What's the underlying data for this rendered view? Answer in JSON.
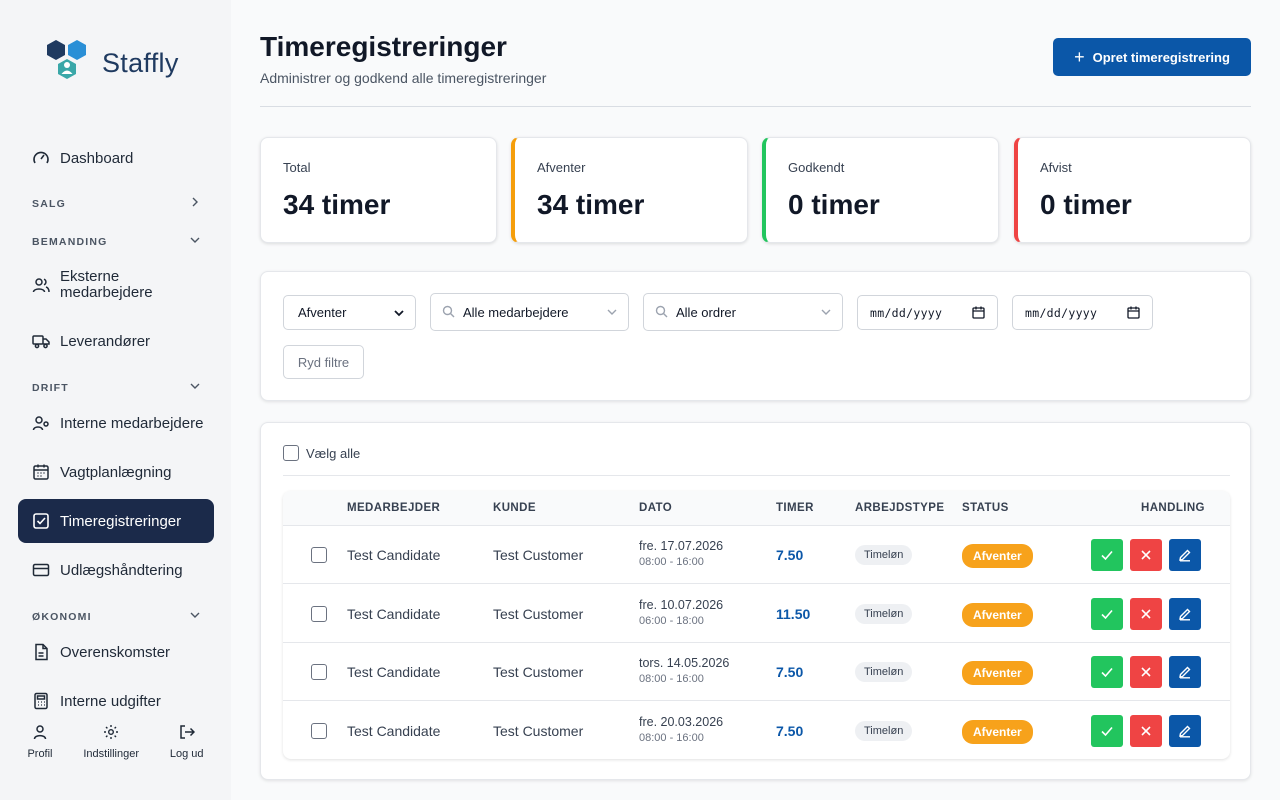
{
  "brand": {
    "name": "Staffly"
  },
  "sidebar": {
    "dashboard": "Dashboard",
    "sections": {
      "salg": "SALG",
      "bemanding": "BEMANDING",
      "drift": "DRIFT",
      "okonomi": "ØKONOMI"
    },
    "items": {
      "eksterne_line1": "Eksterne",
      "eksterne_line2": "medarbejdere",
      "leverandorer": "Leverandører",
      "interne": "Interne medarbejdere",
      "vagtplan": "Vagtplanlægning",
      "timereg": "Timeregistreringer",
      "udlaeg": "Udlægshåndtering",
      "overens": "Overenskomster",
      "udgifter": "Interne udgifter"
    },
    "bottom": {
      "profil": "Profil",
      "indstillinger": "Indstillinger",
      "logud": "Log ud"
    }
  },
  "header": {
    "title": "Timeregistreringer",
    "subtitle": "Administrer og godkend alle timeregistreringer",
    "create_label": "Opret timeregistrering"
  },
  "stats": {
    "total": {
      "label": "Total",
      "value": "34 timer"
    },
    "afventer": {
      "label": "Afventer",
      "value": "34 timer"
    },
    "godkendt": {
      "label": "Godkendt",
      "value": "0 timer"
    },
    "afvist": {
      "label": "Afvist",
      "value": "0 timer"
    }
  },
  "filters": {
    "status": "Afventer",
    "employees": "Alle medarbejdere",
    "orders": "Alle ordrer",
    "date_from": "mm/dd/yyyy",
    "date_to": "mm/dd/yyyy",
    "clear": "Ryd filtre"
  },
  "table": {
    "select_all": "Vælg alle",
    "headers": {
      "employee": "MEDARBEJDER",
      "customer": "KUNDE",
      "date": "DATO",
      "hours": "TIMER",
      "worktype": "ARBEJDSTYPE",
      "status": "STATUS",
      "action": "HANDLING"
    },
    "rows": [
      {
        "employee": "Test Candidate",
        "customer": "Test Customer",
        "date": "fre. 17.07.2026",
        "time": "08:00 - 16:00",
        "hours": "7.50",
        "worktype": "Timeløn",
        "status": "Afventer"
      },
      {
        "employee": "Test Candidate",
        "customer": "Test Customer",
        "date": "fre. 10.07.2026",
        "time": "06:00 - 18:00",
        "hours": "11.50",
        "worktype": "Timeløn",
        "status": "Afventer"
      },
      {
        "employee": "Test Candidate",
        "customer": "Test Customer",
        "date": "tors. 14.05.2026",
        "time": "08:00 - 16:00",
        "hours": "7.50",
        "worktype": "Timeløn",
        "status": "Afventer"
      },
      {
        "employee": "Test Candidate",
        "customer": "Test Customer",
        "date": "fre. 20.03.2026",
        "time": "08:00 - 16:00",
        "hours": "7.50",
        "worktype": "Timeløn",
        "status": "Afventer"
      }
    ]
  },
  "colors": {
    "primary": "#0b57a8",
    "sidebar_active": "#1b2a4a",
    "pending": "#f7a21b",
    "approve": "#22c55e",
    "reject": "#ef4444"
  },
  "icons": {
    "dashboard": "gauge-icon",
    "eksterne": "users-icon",
    "leverandorer": "truck-icon",
    "interne": "user-cog-icon",
    "vagtplan": "calendar-icon",
    "timereg": "checkbox-icon",
    "udlaeg": "credit-card-icon",
    "overens": "document-icon",
    "udgifter": "calculator-icon"
  }
}
